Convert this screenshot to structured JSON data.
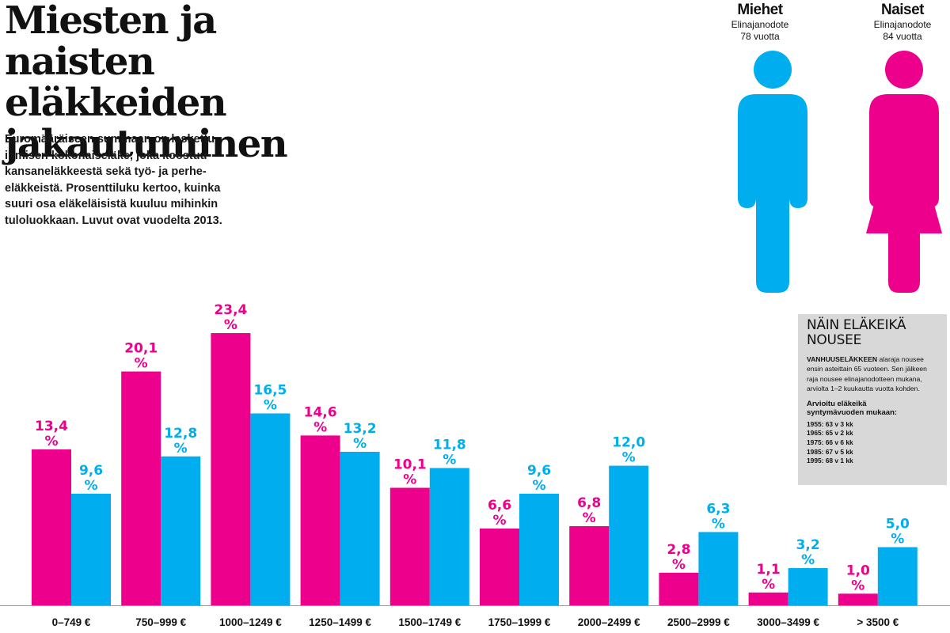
{
  "heading": {
    "title_lines": [
      "Miesten ja naisten",
      "eläkkeiden",
      "jakautuminen"
    ],
    "intro": "Euromääräiseen summaan on laskettu ihmisen kokonaiseläke, joka koostuu kansaneläkkeestä sekä työ- ja perhe-eläkkeistä. Prosenttiluku kertoo, kuinka suuri osa eläkeläisistä kuuluu mihinkin tuloluokkaan. Luvut ovat vuodelta 2013."
  },
  "legend": {
    "men": {
      "name": "Miehet",
      "sub1": "Elinajanodote",
      "sub2": "78 vuotta",
      "color": "#00aeef",
      "icon": "man-icon"
    },
    "women": {
      "name": "Naiset",
      "sub1": "Elinajanodote",
      "sub2": "84 vuotta",
      "color": "#ec008c",
      "icon": "woman-icon"
    }
  },
  "infobox": {
    "title_line1": "NÄIN ELÄKEIKÄ",
    "title_line2": "NOUSEE",
    "text_bold": "VANHUUSELÄKKEEN",
    "text": " alaraja nousee ensin asteittain 65 vuoteen. Sen jälkeen raja nousee elinajanodotteen mukana, arviolta 1–2 kuukautta vuotta kohden.",
    "subheading": "Arvioitu eläkeikä syntymävuoden mukaan:",
    "items": [
      "1955: 63 v 3 kk",
      "1965: 65 v 2 kk",
      "1975: 66 v 6 kk",
      "1985: 67 v 5 kk",
      "1995: 68 v 1 kk"
    ]
  },
  "chart_data": {
    "type": "bar",
    "categories": [
      "0–749 €",
      "750–999 €",
      "1000–1249 €",
      "1250–1499 €",
      "1500–1749 €",
      "1750–1999 €",
      "2000–2499 €",
      "2500–2999 €",
      "3000–3499 €",
      "> 3500 €"
    ],
    "series": [
      {
        "name": "Naiset",
        "color": "#ec008c",
        "values": [
          13.4,
          20.1,
          23.4,
          14.6,
          10.1,
          6.6,
          6.8,
          2.8,
          1.1,
          1.0
        ],
        "labels": [
          "13,4",
          "20,1",
          "23,4",
          "14,6",
          "10,1",
          "6,6",
          "6,8",
          "2,8",
          "1,1",
          "1,0"
        ]
      },
      {
        "name": "Miehet",
        "color": "#00aeef",
        "values": [
          9.6,
          12.8,
          16.5,
          13.2,
          11.8,
          9.6,
          12.0,
          6.3,
          3.2,
          5.0
        ],
        "labels": [
          "9,6",
          "12,8",
          "16,5",
          "13,2",
          "11,8",
          "9,6",
          "12,0",
          "6,3",
          "3,2",
          "5,0"
        ]
      }
    ],
    "unit": "%",
    "ylim": [
      0,
      25
    ],
    "grid": false,
    "title": "",
    "xlabel": "",
    "ylabel": ""
  }
}
